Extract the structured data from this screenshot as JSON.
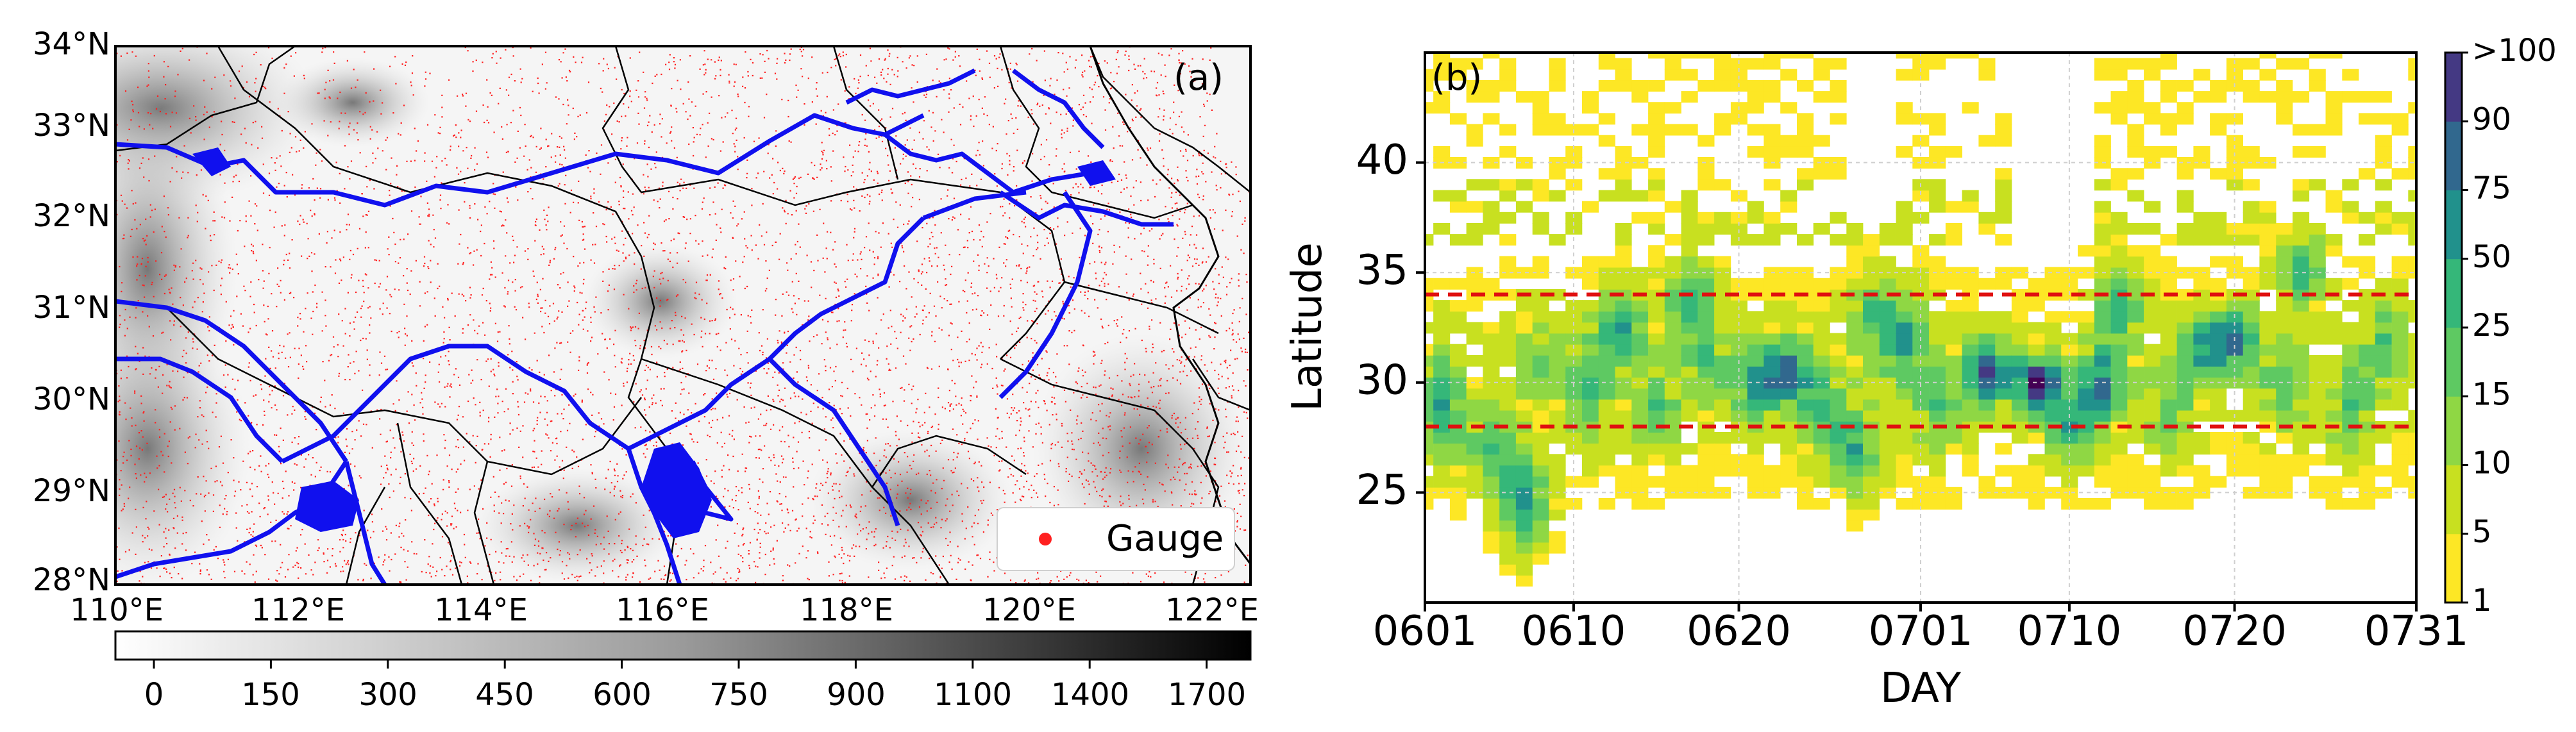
{
  "panel_a": {
    "label": "(a)",
    "lat_ticks": [
      "34°N",
      "33°N",
      "32°N",
      "31°N",
      "30°N",
      "29°N",
      "28°N"
    ],
    "lon_ticks": [
      "110°E",
      "112°E",
      "114°E",
      "116°E",
      "118°E",
      "120°E",
      "122°E"
    ],
    "legend_label": "Gauge",
    "colorbar_ticks": [
      "0",
      "150",
      "300",
      "450",
      "600",
      "750",
      "900",
      "1100",
      "1400",
      "1700"
    ],
    "gauge_color": "#ff2020",
    "river_color": "#1010ee",
    "boundary_color": "#000000"
  },
  "chart_data": {
    "type": "heatmap",
    "title": "(b)",
    "xlabel": "DAY",
    "ylabel": "Latitude",
    "x_tick_labels": [
      "0601",
      "0610",
      "0620",
      "0701",
      "0710",
      "0720",
      "0731"
    ],
    "y_ticks": [
      25,
      30,
      35,
      40
    ],
    "ylim": [
      20,
      45
    ],
    "colorbar_labels": [
      "1",
      "5",
      "10",
      "15",
      "25",
      "50",
      "75",
      "90",
      ">100"
    ],
    "colorbar_colors": [
      "#fde725",
      "#c8e020",
      "#8fd744",
      "#5ec962",
      "#35b779",
      "#21918c",
      "#31688e",
      "#443983",
      "#440154"
    ],
    "reference_lines": [
      28,
      34
    ],
    "reference_line_color": "#e01010"
  }
}
